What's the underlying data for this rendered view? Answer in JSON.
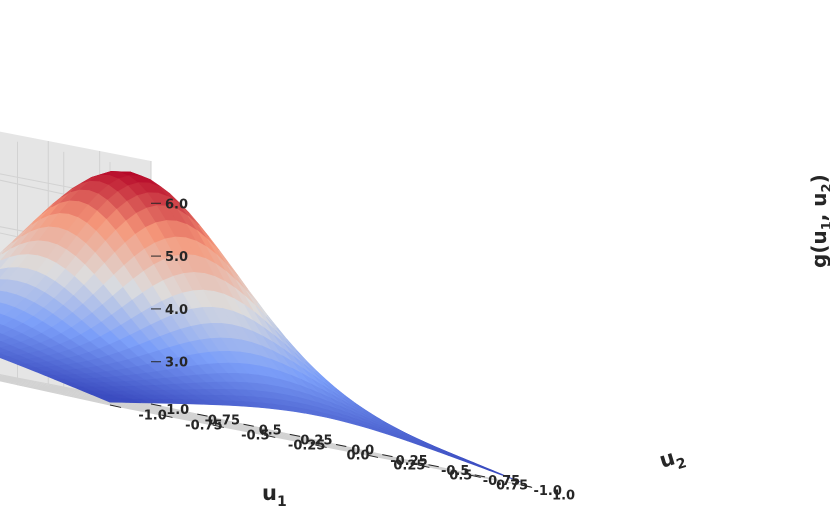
{
  "chart_data": {
    "type": "surface3d",
    "function": "g(u1, u2)",
    "colormap": "coolwarm",
    "grid": true,
    "x_axis": {
      "label_base": "u",
      "label_sub": "1",
      "range": [
        -1.0,
        1.0
      ],
      "ticks": [
        -1.0,
        -0.75,
        -0.5,
        -0.25,
        0.0,
        0.25,
        0.5,
        0.75,
        1.0
      ],
      "tick_labels": [
        "-1.0",
        "-0.75",
        "-0.5",
        "-0.25",
        "0.0",
        "0.25",
        "0.5",
        "0.75",
        "1.0"
      ]
    },
    "y_axis": {
      "label_base": "u",
      "label_sub": "2",
      "range": [
        -1.0,
        1.0
      ],
      "ticks": [
        -1.0,
        -0.75,
        -0.5,
        -0.25,
        0.0,
        0.25,
        0.5,
        0.75,
        1.0
      ],
      "tick_labels": [
        "-1.0",
        "-0.75",
        "-0.5",
        "-0.25",
        "0.0",
        "0.25",
        "0.5",
        "0.75",
        "1.0"
      ]
    },
    "z_axis": {
      "label_parts": [
        "g(u",
        "1",
        ", u",
        "2",
        ")"
      ],
      "ticks": [
        3.0,
        4.0,
        5.0,
        6.0
      ],
      "tick_labels": [
        "3.0",
        "4.0",
        "5.0",
        "6.0"
      ],
      "range": [
        2.2,
        6.8
      ]
    },
    "surface": {
      "u1": [
        -1.0,
        -0.5,
        0.0,
        0.5,
        1.0
      ],
      "u2": [
        -1.0,
        -0.5,
        0.0,
        0.5,
        1.0
      ],
      "values": [
        [
          2.35,
          2.91,
          3.18,
          2.91,
          2.35
        ],
        [
          2.91,
          4.2,
          4.95,
          4.2,
          2.91
        ],
        [
          3.18,
          4.95,
          6.6,
          4.95,
          3.18
        ],
        [
          2.91,
          4.2,
          4.95,
          4.2,
          2.91
        ],
        [
          2.35,
          2.91,
          3.18,
          2.91,
          2.35
        ]
      ],
      "max": 6.6,
      "min_corner": 2.35,
      "edge_midpoint": 3.18
    }
  }
}
